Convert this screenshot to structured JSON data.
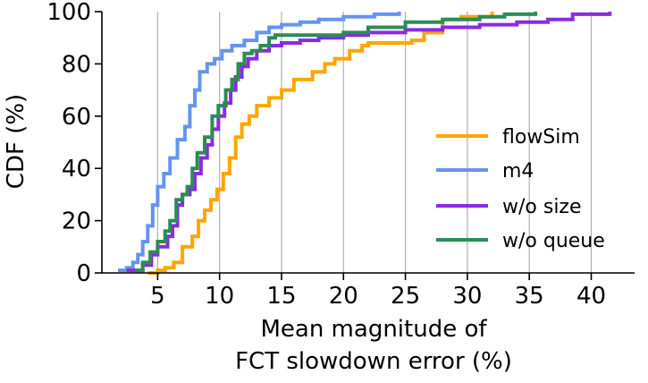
{
  "chart_data": {
    "type": "line",
    "title": "",
    "xlabel_lines": [
      "Mean magnitude of",
      "FCT slowdown error (%)"
    ],
    "ylabel": "CDF (%)",
    "xlim": [
      0.5,
      43.5
    ],
    "ylim": [
      0,
      100
    ],
    "xticks": [
      5,
      10,
      15,
      20,
      25,
      30,
      35,
      40
    ],
    "yticks": [
      0,
      20,
      40,
      60,
      80,
      100
    ],
    "grid": "vertical",
    "legend_position": "right-center",
    "series": [
      {
        "name": "flowSim",
        "color": "#ffa500",
        "points": [
          [
            4.2,
            0
          ],
          [
            5.0,
            1
          ],
          [
            5.6,
            2
          ],
          [
            6.3,
            4
          ],
          [
            6.6,
            4
          ],
          [
            7.0,
            10
          ],
          [
            7.8,
            14
          ],
          [
            8.3,
            20
          ],
          [
            8.8,
            24
          ],
          [
            9.3,
            28
          ],
          [
            9.8,
            32
          ],
          [
            10.3,
            38
          ],
          [
            10.8,
            44
          ],
          [
            11.3,
            52
          ],
          [
            11.8,
            57
          ],
          [
            12.4,
            60
          ],
          [
            13.0,
            64
          ],
          [
            14.0,
            67
          ],
          [
            15.0,
            70
          ],
          [
            16.0,
            74
          ],
          [
            17.5,
            77
          ],
          [
            18.5,
            80
          ],
          [
            19.3,
            82
          ],
          [
            20.5,
            85
          ],
          [
            21.5,
            87
          ],
          [
            22.0,
            88
          ],
          [
            24.0,
            88
          ],
          [
            25.5,
            89
          ],
          [
            26.5,
            92
          ],
          [
            28.0,
            97
          ],
          [
            29.5,
            98
          ],
          [
            32.0,
            100
          ]
        ]
      },
      {
        "name": "m4",
        "color": "#6495ed",
        "points": [
          [
            1.8,
            1
          ],
          [
            2.5,
            2
          ],
          [
            3.0,
            4
          ],
          [
            3.4,
            7
          ],
          [
            3.8,
            12
          ],
          [
            4.2,
            18
          ],
          [
            4.6,
            26
          ],
          [
            5.0,
            33
          ],
          [
            5.5,
            38
          ],
          [
            6.0,
            44
          ],
          [
            6.6,
            51
          ],
          [
            7.2,
            56
          ],
          [
            7.6,
            64
          ],
          [
            8.0,
            70
          ],
          [
            8.4,
            77
          ],
          [
            9.0,
            80
          ],
          [
            9.6,
            82
          ],
          [
            10.2,
            85
          ],
          [
            11.0,
            87
          ],
          [
            12.0,
            89
          ],
          [
            13.0,
            92
          ],
          [
            14.0,
            94
          ],
          [
            15.0,
            95
          ],
          [
            16.5,
            96
          ],
          [
            18.0,
            97
          ],
          [
            20.0,
            98
          ],
          [
            22.5,
            99
          ],
          [
            24.5,
            100
          ]
        ]
      },
      {
        "name": "w/o size",
        "color": "#8a2be2",
        "points": [
          [
            2.5,
            1
          ],
          [
            3.8,
            3
          ],
          [
            4.5,
            7
          ],
          [
            5.0,
            10
          ],
          [
            5.8,
            14
          ],
          [
            6.2,
            18
          ],
          [
            6.6,
            26
          ],
          [
            7.0,
            30
          ],
          [
            7.6,
            32
          ],
          [
            8.0,
            38
          ],
          [
            8.5,
            44
          ],
          [
            9.0,
            49
          ],
          [
            9.4,
            55
          ],
          [
            9.9,
            60
          ],
          [
            10.4,
            65
          ],
          [
            10.9,
            70
          ],
          [
            11.3,
            75
          ],
          [
            11.8,
            79
          ],
          [
            12.3,
            82
          ],
          [
            13.0,
            85
          ],
          [
            14.0,
            87
          ],
          [
            15.0,
            88
          ],
          [
            16.5,
            89
          ],
          [
            18.0,
            90
          ],
          [
            20.0,
            91
          ],
          [
            22.0,
            92
          ],
          [
            25.0,
            93
          ],
          [
            28.0,
            94
          ],
          [
            31.0,
            95
          ],
          [
            34.0,
            96
          ],
          [
            36.5,
            97
          ],
          [
            38.5,
            99
          ],
          [
            41.5,
            100
          ]
        ]
      },
      {
        "name": "w/o queue",
        "color": "#2e8b57",
        "points": [
          [
            3.2,
            1
          ],
          [
            3.8,
            4
          ],
          [
            4.4,
            8
          ],
          [
            5.0,
            12
          ],
          [
            5.6,
            16
          ],
          [
            6.0,
            20
          ],
          [
            6.5,
            28
          ],
          [
            7.0,
            30
          ],
          [
            7.4,
            33
          ],
          [
            7.8,
            40
          ],
          [
            8.2,
            46
          ],
          [
            8.8,
            52
          ],
          [
            9.4,
            60
          ],
          [
            9.9,
            64
          ],
          [
            10.5,
            70
          ],
          [
            11.0,
            74
          ],
          [
            11.5,
            80
          ],
          [
            12.0,
            84
          ],
          [
            12.6,
            85
          ],
          [
            13.3,
            87
          ],
          [
            14.0,
            90
          ],
          [
            14.5,
            91
          ],
          [
            16.0,
            91
          ],
          [
            18.0,
            91
          ],
          [
            20.0,
            92
          ],
          [
            22.0,
            94
          ],
          [
            25.0,
            96
          ],
          [
            28.0,
            97
          ],
          [
            31.0,
            98
          ],
          [
            33.0,
            99
          ],
          [
            35.5,
            100
          ]
        ]
      }
    ]
  }
}
